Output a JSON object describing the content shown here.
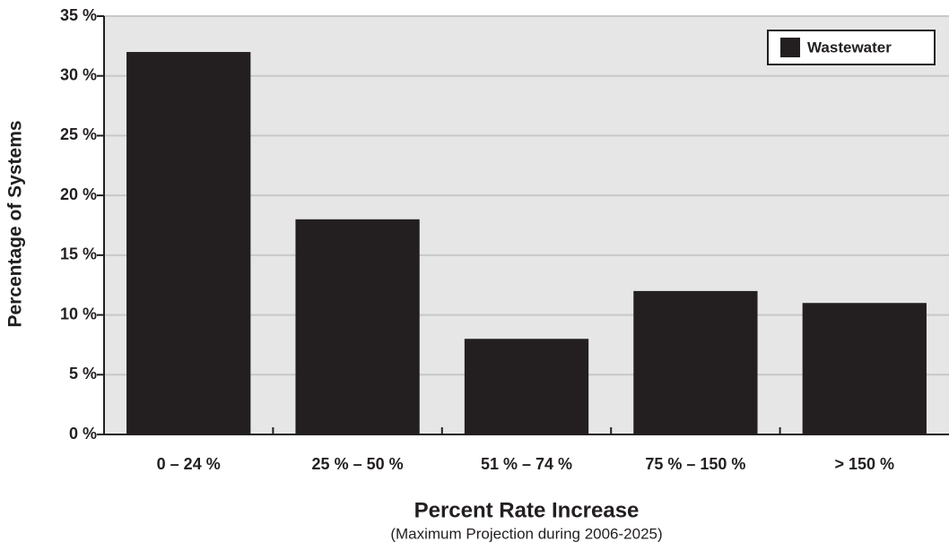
{
  "chart_data": {
    "type": "bar",
    "x_label": "Percent Rate Increase",
    "x_note": "(Maximum Projection during 2006-2025)",
    "y_label": "Percentage of Systems",
    "categories": [
      "0 – 24 %",
      "25 % – 50 %",
      "51 % – 74 %",
      "75 % – 150 %",
      "> 150 %"
    ],
    "series": [
      {
        "name": "Wastewater",
        "color": "#231f20",
        "values": [
          32,
          18,
          8,
          12,
          11
        ]
      }
    ],
    "ylim": [
      0,
      35
    ],
    "yticks": [
      {
        "value": 0,
        "label": "0 %"
      },
      {
        "value": 5,
        "label": "5 %"
      },
      {
        "value": 10,
        "label": "10 %"
      },
      {
        "value": 15,
        "label": "15 %"
      },
      {
        "value": 20,
        "label": "20 %"
      },
      {
        "value": 25,
        "label": "25 %"
      },
      {
        "value": 30,
        "label": "30 %"
      },
      {
        "value": 35,
        "label": "35 %"
      }
    ],
    "grid": true,
    "legend": "upper right"
  }
}
